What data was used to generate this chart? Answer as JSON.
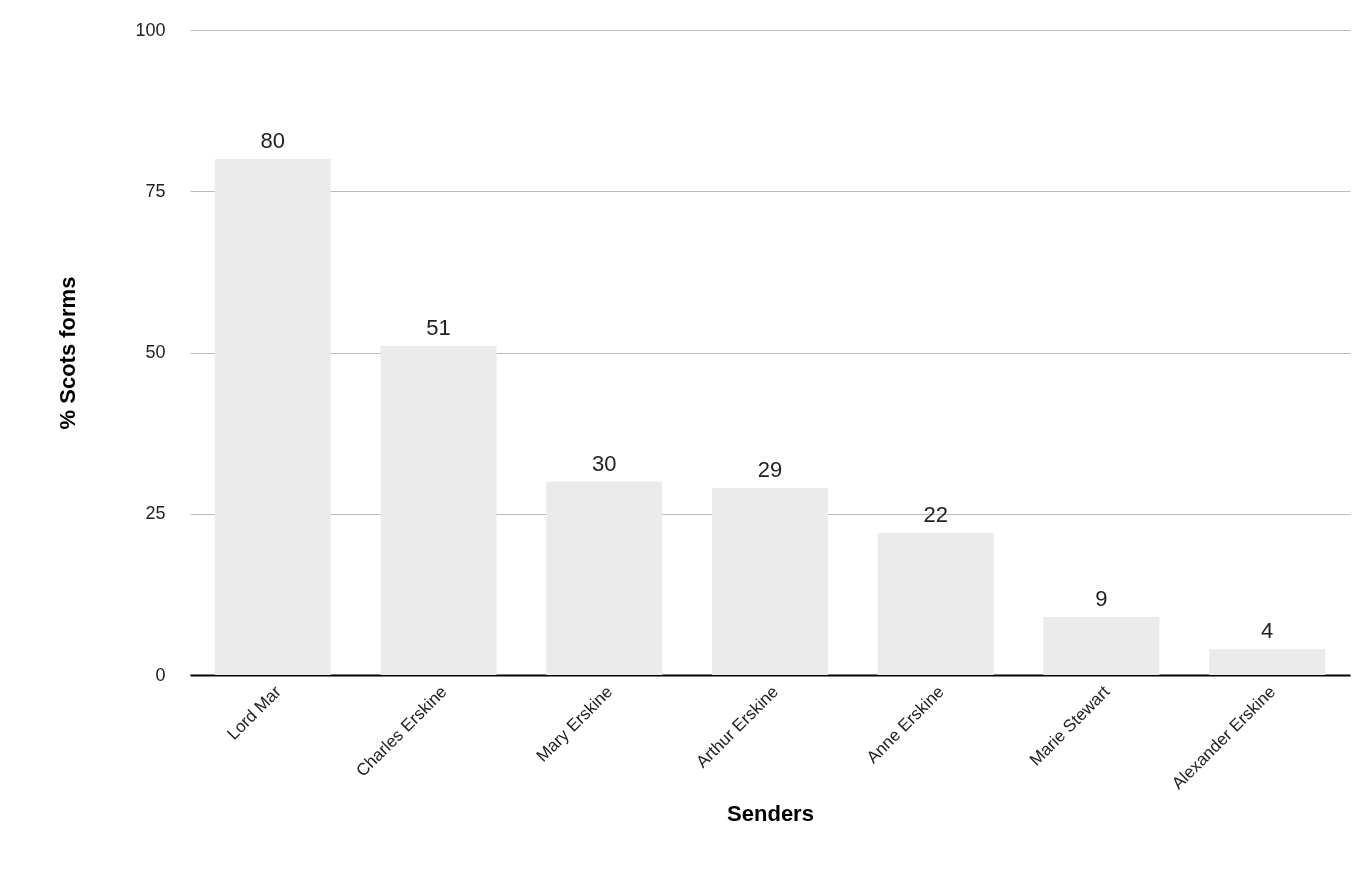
{
  "chart_data": {
    "type": "bar",
    "xlabel": "Senders",
    "ylabel": "% Scots forms",
    "categories": [
      "Lord Mar",
      "Charles Erskine",
      "Mary Erskine",
      "Arthur Erskine",
      "Anne Erskine",
      "Marie Stewart",
      "Alexander Erskine"
    ],
    "values": [
      80,
      51,
      30,
      29,
      22,
      9,
      4
    ],
    "color": "#ebebeb",
    "ylim": [
      0,
      100
    ],
    "yticks": [
      0,
      25,
      50,
      75,
      100
    ],
    "grid": "y",
    "data_labels": true
  }
}
